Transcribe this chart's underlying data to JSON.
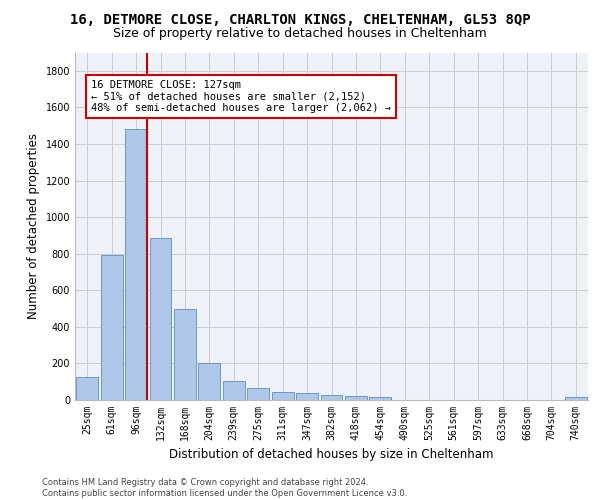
{
  "title_line1": "16, DETMORE CLOSE, CHARLTON KINGS, CHELTENHAM, GL53 8QP",
  "title_line2": "Size of property relative to detached houses in Cheltenham",
  "xlabel": "Distribution of detached houses by size in Cheltenham",
  "ylabel": "Number of detached properties",
  "categories": [
    "25sqm",
    "61sqm",
    "96sqm",
    "132sqm",
    "168sqm",
    "204sqm",
    "239sqm",
    "275sqm",
    "311sqm",
    "347sqm",
    "382sqm",
    "418sqm",
    "454sqm",
    "490sqm",
    "525sqm",
    "561sqm",
    "597sqm",
    "633sqm",
    "668sqm",
    "704sqm",
    "740sqm"
  ],
  "values": [
    125,
    795,
    1480,
    885,
    500,
    205,
    105,
    63,
    43,
    38,
    30,
    20,
    17,
    0,
    0,
    0,
    0,
    0,
    0,
    0,
    18
  ],
  "bar_color": "#aec6e8",
  "bar_edge_color": "#5a8fc0",
  "vline_color": "#cc0000",
  "annotation_text": "16 DETMORE CLOSE: 127sqm\n← 51% of detached houses are smaller (2,152)\n48% of semi-detached houses are larger (2,062) →",
  "annotation_box_color": "#ffffff",
  "annotation_box_edge": "#cc0000",
  "ylim": [
    0,
    1900
  ],
  "yticks": [
    0,
    200,
    400,
    600,
    800,
    1000,
    1200,
    1400,
    1600,
    1800
  ],
  "grid_color": "#cccccc",
  "bg_color": "#eef2f8",
  "footnote": "Contains HM Land Registry data © Crown copyright and database right 2024.\nContains public sector information licensed under the Open Government Licence v3.0.",
  "title_fontsize": 10,
  "subtitle_fontsize": 9,
  "tick_fontsize": 7,
  "ylabel_fontsize": 8.5,
  "xlabel_fontsize": 8.5,
  "annot_fontsize": 7.5,
  "footnote_fontsize": 6
}
